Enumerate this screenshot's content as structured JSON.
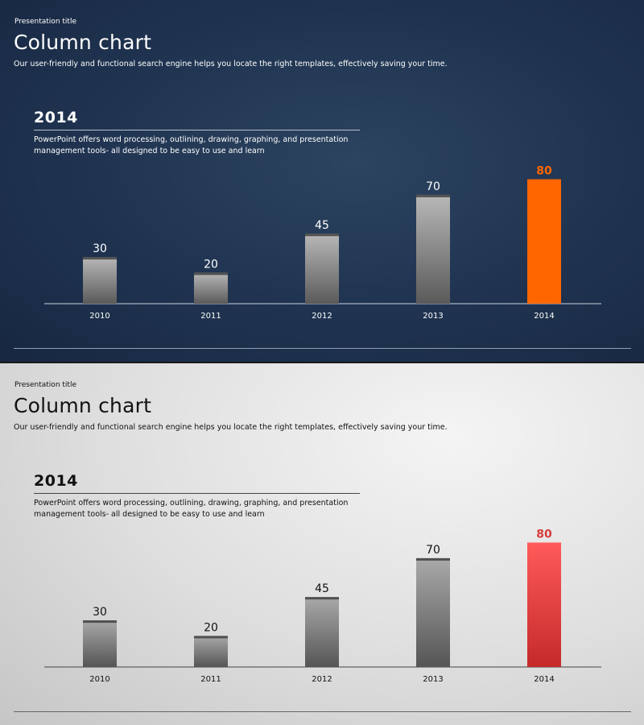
{
  "slides": [
    {
      "presentation_title": "Presentation title",
      "title": "Column chart",
      "subtitle": "Our user-friendly and functional search engine helps you locate the right templates, effectively saving your time.",
      "heading": "2014",
      "description": "PowerPoint offers word processing, outlining, drawing, graphing, and presentation management tools- all designed to be easy to use and learn",
      "colors": {
        "bar_top": "#b8b8b8",
        "bar_bottom": "#5a5a5a",
        "highlight_top": "#ff6600",
        "highlight_bottom": "#ff6600",
        "highlight_label": "#ff6600",
        "label": "#ffffff",
        "axis": "#c9d2dd",
        "tick_label": "#ffffff"
      }
    },
    {
      "presentation_title": "Presentation title",
      "title": "Column chart",
      "subtitle": "Our user-friendly and functional search engine helps you locate the right templates, effectively saving your time.",
      "heading": "2014",
      "description": "PowerPoint offers word processing, outlining, drawing, graphing, and presentation management tools- all designed to be easy to use and learn",
      "colors": {
        "bar_top": "#a9a9a9",
        "bar_bottom": "#555555",
        "highlight_top": "#ff5a5a",
        "highlight_bottom": "#c42a2a",
        "highlight_label": "#d83a3a",
        "label": "#111111",
        "axis": "#444444",
        "tick_label": "#111111"
      }
    }
  ],
  "chart_data": [
    {
      "type": "bar",
      "categories": [
        "2010",
        "2011",
        "2012",
        "2013",
        "2014"
      ],
      "values": [
        30,
        20,
        45,
        70,
        80
      ],
      "highlight_index": 4,
      "title": "2014",
      "xlabel": "",
      "ylabel": "",
      "ylim": [
        0,
        100
      ],
      "grid": false
    },
    {
      "type": "bar",
      "categories": [
        "2010",
        "2011",
        "2012",
        "2013",
        "2014"
      ],
      "values": [
        30,
        20,
        45,
        70,
        80
      ],
      "highlight_index": 4,
      "title": "2014",
      "xlabel": "",
      "ylabel": "",
      "ylim": [
        0,
        100
      ],
      "grid": false
    }
  ]
}
